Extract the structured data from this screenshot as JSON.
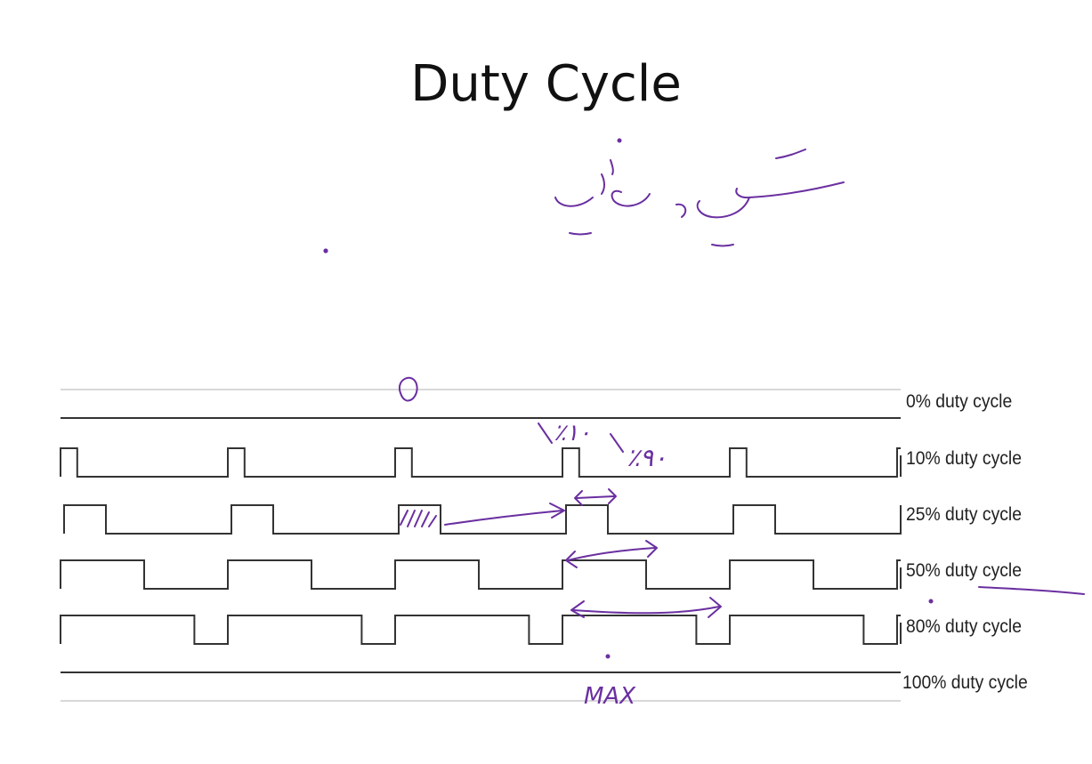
{
  "slide": {
    "title": "Duty Cycle"
  },
  "colors": {
    "waveform": "#333333",
    "guide": "#d8d8d8",
    "annotation": "#6a2fa0"
  },
  "waveforms": [
    {
      "name": "wave-0",
      "label": "0% duty cycle",
      "duty": 0
    },
    {
      "name": "wave-10",
      "label": "10% duty cycle",
      "duty": 0.1
    },
    {
      "name": "wave-25",
      "label": "25% duty cycle",
      "duty": 0.25
    },
    {
      "name": "wave-50",
      "label": "50% duty cycle",
      "duty": 0.5
    },
    {
      "name": "wave-80",
      "label": "80% duty cycle",
      "duty": 0.8
    },
    {
      "name": "wave-100",
      "label": "100% duty cycle",
      "duty": 1.0
    }
  ],
  "annotations": {
    "percent_10": "٪۱۰",
    "percent_90": "٪۹۰",
    "max": "MAX",
    "zero": "0"
  }
}
